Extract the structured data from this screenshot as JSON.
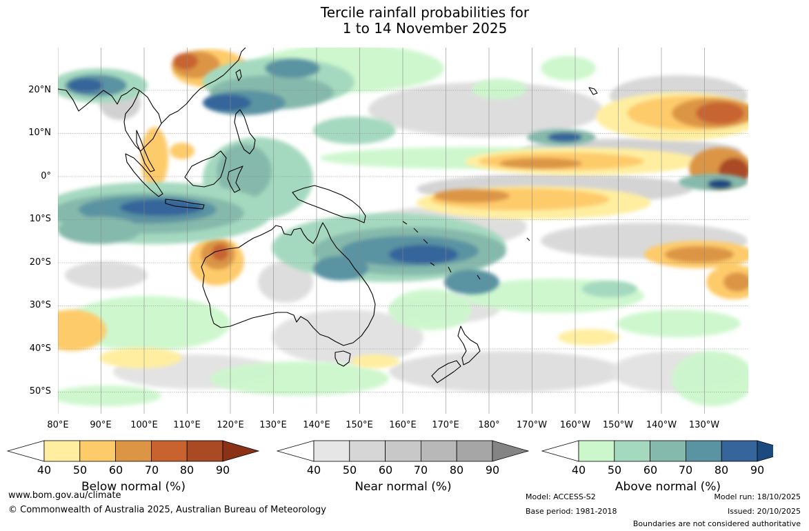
{
  "title": {
    "line1": "Tercile rainfall probabilities for",
    "line2": "1 to 14 November 2025"
  },
  "axes": {
    "lat_labels": [
      "20°N",
      "10°N",
      "0°",
      "10°S",
      "20°S",
      "30°S",
      "40°S",
      "50°S"
    ],
    "lon_labels": [
      "80°E",
      "90°E",
      "100°E",
      "110°E",
      "120°E",
      "130°E",
      "140°E",
      "150°E",
      "160°E",
      "170°E",
      "180°",
      "170°W",
      "160°W",
      "150°W",
      "140°W",
      "130°W"
    ]
  },
  "legends": [
    {
      "title": "Below normal (%)",
      "ticks": [
        "40",
        "50",
        "60",
        "70",
        "80",
        "90"
      ],
      "colors": [
        "#ffffff",
        "#ffeea0",
        "#fecb6a",
        "#dc9545",
        "#c86330",
        "#a94a25",
        "#8a3118"
      ]
    },
    {
      "title": "Near normal (%)",
      "ticks": [
        "40",
        "50",
        "60",
        "70",
        "80",
        "90"
      ],
      "colors": [
        "#ffffff",
        "#e6e6e6",
        "#d6d6d6",
        "#c8c8c8",
        "#b8b8b8",
        "#a6a6a6",
        "#848484"
      ]
    },
    {
      "title": "Above normal (%)",
      "ticks": [
        "40",
        "50",
        "60",
        "70",
        "80",
        "90"
      ],
      "colors": [
        "#ffffff",
        "#ccf7cc",
        "#a5d9bf",
        "#85b9ab",
        "#5a93a2",
        "#35659a",
        "#1c4a7e"
      ]
    }
  ],
  "footer": {
    "website": "www.bom.gov.au/climate",
    "copyright": "© Commonwealth of Australia 2025, Australian Bureau of Meteorology",
    "model": "Model: ACCESS-S2",
    "base_period": "Base period: 1981-2018",
    "model_run": "Model run: 18/10/2025",
    "issued": "Issued: 20/10/2025",
    "disclaimer": "Boundaries are not considered authoritative"
  }
}
